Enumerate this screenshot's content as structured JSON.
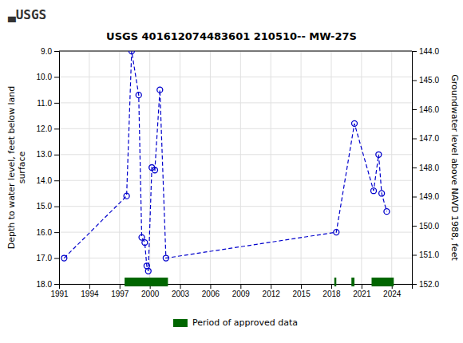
{
  "chart_data": {
    "type": "line",
    "title": "USGS 401612074483601 210510-- MW-27S",
    "annotations": [
      "▃USGS"
    ],
    "ylabel": "Depth to water level, feet below land\nsurface",
    "y2label": "Groundwater level above NAVD 1988, feet",
    "xlim": [
      1991,
      2026
    ],
    "xticks": [
      1991,
      1994,
      1997,
      2000,
      2003,
      2006,
      2009,
      2012,
      2015,
      2018,
      2021,
      2024
    ],
    "ylim": [
      18.0,
      9.0
    ],
    "yticks": [
      {
        "value": 9.0,
        "label": "9.0"
      },
      {
        "value": 10.0,
        "label": "10.0"
      },
      {
        "value": 11.0,
        "label": "11.0"
      },
      {
        "value": 12.0,
        "label": "12.0"
      },
      {
        "value": 13.0,
        "label": "13.0"
      },
      {
        "value": 14.0,
        "label": "14.0"
      },
      {
        "value": 15.0,
        "label": "15.0"
      },
      {
        "value": 16.0,
        "label": "16.0"
      },
      {
        "value": 17.0,
        "label": "17.0"
      },
      {
        "value": 18.0,
        "label": "18.0"
      }
    ],
    "y2lim": [
      152.0,
      144.0
    ],
    "y2ticks": [
      {
        "value": 144.0,
        "label": "144.0"
      },
      {
        "value": 145.0,
        "label": "145.0"
      },
      {
        "value": 146.0,
        "label": "146.0"
      },
      {
        "value": 147.0,
        "label": "147.0"
      },
      {
        "value": 148.0,
        "label": "148.0"
      },
      {
        "value": 149.0,
        "label": "149.0"
      },
      {
        "value": 150.0,
        "label": "150.0"
      },
      {
        "value": 151.0,
        "label": "151.0"
      },
      {
        "value": 152.0,
        "label": "152.0"
      }
    ],
    "grid": true,
    "legend": "bottom",
    "series": [
      {
        "type": "line",
        "color": "#0000CC",
        "marker": "circle",
        "line_style": "dashed",
        "x": [
          1991.5,
          1997.7,
          1998.2,
          1998.9,
          1999.2,
          1999.5,
          1999.7,
          1999.85,
          2000.2,
          2000.5,
          2001.0,
          2001.6,
          2018.5,
          2020.3,
          2022.2,
          2022.7,
          2023.0,
          2023.5
        ],
        "values": [
          17.0,
          14.6,
          9.0,
          10.7,
          16.2,
          16.4,
          17.3,
          17.5,
          13.5,
          13.6,
          10.5,
          17.0,
          16.0,
          11.8,
          14.4,
          13.0,
          14.5,
          15.2
        ]
      },
      {
        "type": "span",
        "name": "Period of approved data",
        "color": "#006600",
        "x": [
          1997.5,
          2018.3,
          2020.0,
          2022.0
        ],
        "x_end": [
          2001.8,
          2018.5,
          2020.3,
          2024.2
        ]
      }
    ]
  }
}
